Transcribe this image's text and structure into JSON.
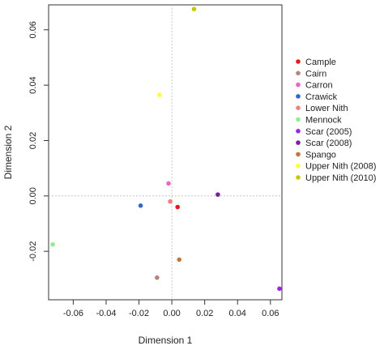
{
  "chart_data": {
    "type": "scatter",
    "xlabel": "Dimension 1",
    "ylabel": "Dimension 2",
    "xlim": [
      -0.075,
      0.067
    ],
    "ylim": [
      -0.0375,
      0.069
    ],
    "x_ticks": [
      -0.06,
      -0.04,
      -0.02,
      0.0,
      0.02,
      0.04,
      0.06
    ],
    "x_tick_labels": [
      "-0.06",
      "-0.04",
      "-0.02",
      "0.00",
      "0.02",
      "0.04",
      "0.06"
    ],
    "y_ticks": [
      -0.02,
      0.0,
      0.02,
      0.04,
      0.06
    ],
    "y_tick_labels": [
      "-0.02",
      "0.00",
      "0.02",
      "0.04",
      "0.06"
    ],
    "reference_lines": {
      "x": 0,
      "y": 0
    },
    "legend_position": "right",
    "series": [
      {
        "name": "Cample",
        "color": "#e41a1c",
        "x": 0.0035,
        "y": -0.004
      },
      {
        "name": "Cairn",
        "color": "#b5857a",
        "x": -0.009,
        "y": -0.0295
      },
      {
        "name": "Carron",
        "color": "#e866c8",
        "x": -0.002,
        "y": 0.0045
      },
      {
        "name": "Crawick",
        "color": "#3366cc",
        "x": -0.019,
        "y": -0.0035
      },
      {
        "name": "Lower Nith",
        "color": "#f08080",
        "x": -0.001,
        "y": -0.002
      },
      {
        "name": "Mennock",
        "color": "#90ee90",
        "x": -0.0725,
        "y": -0.0175
      },
      {
        "name": "Scar (2005)",
        "color": "#a020f0",
        "x": 0.0655,
        "y": -0.0335
      },
      {
        "name": "Scar (2008)",
        "color": "#7b1fa2",
        "x": 0.028,
        "y": 0.0005
      },
      {
        "name": "Spango",
        "color": "#c0783c",
        "x": 0.0045,
        "y": -0.023
      },
      {
        "name": "Upper Nith (2008)",
        "color": "#ffff33",
        "x": -0.0075,
        "y": 0.0365
      },
      {
        "name": "Upper Nith (2010)",
        "color": "#c8c800",
        "x": 0.0135,
        "y": 0.0675
      }
    ]
  }
}
